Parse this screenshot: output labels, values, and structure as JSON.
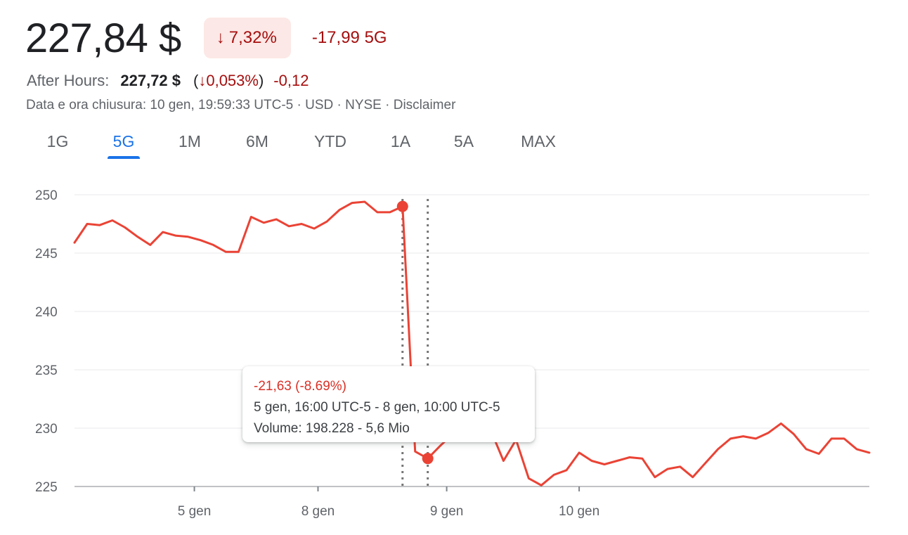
{
  "quote": {
    "price": "227,84 $",
    "change_pct": "7,32%",
    "change_abs": "-17,99 5G",
    "down_arrow": "↓"
  },
  "after_hours": {
    "label": "After Hours:",
    "price": "227,72 $",
    "pct_open": "(",
    "arrow": "↓",
    "pct": "0,053%",
    "pct_close": ")",
    "abs": "-0,12"
  },
  "meta": "Data e ora chiusura: 10 gen, 19:59:33 UTC-5 · USD · NYSE · Disclaimer",
  "tabs": [
    {
      "label": "1G",
      "active": false
    },
    {
      "label": "5G",
      "active": true
    },
    {
      "label": "1M",
      "active": false
    },
    {
      "label": "6M",
      "active": false
    },
    {
      "label": "YTD",
      "active": false
    },
    {
      "label": "1A",
      "active": false
    },
    {
      "label": "5A",
      "active": false
    },
    {
      "label": "MAX",
      "active": false
    }
  ],
  "tooltip": {
    "change": "-21,63 (-8.69%)",
    "range": "5 gen, 16:00 UTC-5 - 8 gen, 10:00 UTC-5",
    "volume": "Volume: 198.228 - 5,6 Mio"
  },
  "colors": {
    "line": "#ea4335",
    "negative": "#a50e0e",
    "accent": "#1a73e8",
    "grid": "#e8eaed",
    "axis_text": "#5f6368"
  },
  "chart_data": {
    "type": "line",
    "ylim": [
      225,
      250
    ],
    "yticks": [
      "250",
      "245",
      "240",
      "235",
      "230",
      "225"
    ],
    "ytick_values": [
      250,
      245,
      240,
      235,
      230,
      225
    ],
    "xticks": [
      "5 gen",
      "8 gen",
      "9 gen",
      "10 gen"
    ],
    "xtick_positions": [
      9.5,
      19.3,
      29.5,
      40
    ],
    "series": [
      {
        "values": [
          245.9,
          247.5,
          247.4,
          247.8,
          247.2,
          246.4,
          245.7,
          246.8,
          246.5,
          246.4,
          246.1,
          245.7,
          245.1,
          245.1,
          248.1,
          247.6,
          247.9,
          247.3,
          247.5,
          247.1,
          247.7,
          248.7,
          249.3,
          249.4,
          248.5,
          248.5,
          249.0,
          228.0,
          227.4,
          228.5,
          229.5,
          230.2,
          229.6,
          229.8,
          227.2,
          229.0,
          225.7,
          225.1,
          226.0,
          226.4,
          227.9,
          227.2,
          226.9,
          227.2,
          227.5,
          227.4,
          225.8,
          226.5,
          226.7,
          225.8,
          227.0,
          228.2,
          229.1,
          229.3,
          229.1,
          229.6,
          230.4,
          229.5,
          228.2,
          227.8,
          229.1,
          229.1,
          228.2,
          227.9
        ]
      }
    ],
    "highlight": {
      "from_index": 26,
      "to_index": 28
    }
  }
}
